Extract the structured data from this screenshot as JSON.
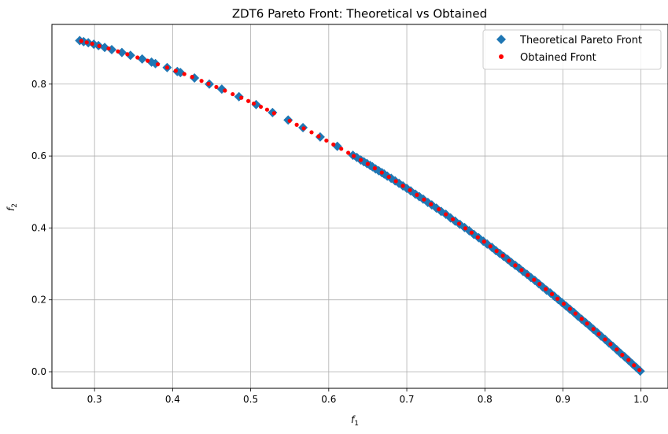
{
  "chart_data": {
    "type": "scatter",
    "title": "ZDT6 Pareto Front: Theoretical vs Obtained",
    "xlabel_main": "f",
    "xlabel_sub": "1",
    "ylabel_main": "f",
    "ylabel_sub": "2",
    "xlim": [
      0.2454,
      1.0346
    ],
    "ylim": [
      -0.046,
      0.966
    ],
    "xticks": [
      0.3,
      0.4,
      0.5,
      0.6,
      0.7,
      0.8,
      0.9,
      1.0
    ],
    "xtick_labels": [
      "0.3",
      "0.4",
      "0.5",
      "0.6",
      "0.7",
      "0.8",
      "0.9",
      "1.0"
    ],
    "yticks": [
      0.0,
      0.2,
      0.4,
      0.6,
      0.8
    ],
    "ytick_labels": [
      "0.0",
      "0.2",
      "0.4",
      "0.6",
      "0.8"
    ],
    "grid": true,
    "legend_position": "top-right",
    "series": [
      {
        "name": "Theoretical Pareto Front",
        "marker": "diamond",
        "color": "#1f77b4",
        "x": [
          0.281,
          0.286,
          0.292,
          0.299,
          0.305,
          0.313,
          0.322,
          0.335,
          0.346,
          0.361,
          0.373,
          0.378,
          0.393,
          0.406,
          0.41,
          0.428,
          0.447,
          0.463,
          0.485,
          0.507,
          0.528,
          0.548,
          0.567,
          0.589,
          0.611,
          0.631,
          0.636,
          0.641,
          0.645,
          0.649,
          0.653,
          0.656,
          0.66,
          0.664,
          0.668,
          0.671,
          0.675,
          0.68,
          0.685,
          0.69,
          0.695,
          0.7,
          0.705,
          0.711,
          0.716,
          0.721,
          0.727,
          0.732,
          0.738,
          0.744,
          0.75,
          0.756,
          0.762,
          0.768,
          0.774,
          0.78,
          0.786,
          0.792,
          0.798,
          0.803,
          0.809,
          0.814,
          0.819,
          0.824,
          0.829,
          0.834,
          0.839,
          0.844,
          0.849,
          0.854,
          0.859,
          0.864,
          0.869,
          0.874,
          0.879,
          0.884,
          0.889,
          0.894,
          0.899,
          0.904,
          0.909,
          0.914,
          0.919,
          0.924,
          0.929,
          0.934,
          0.939,
          0.944,
          0.949,
          0.954,
          0.959,
          0.964,
          0.969,
          0.974,
          0.979,
          0.984,
          0.989,
          0.994,
          0.999
        ],
        "y": [
          0.921,
          0.918,
          0.915,
          0.911,
          0.907,
          0.902,
          0.896,
          0.888,
          0.88,
          0.87,
          0.861,
          0.857,
          0.846,
          0.835,
          0.832,
          0.817,
          0.8,
          0.786,
          0.765,
          0.743,
          0.721,
          0.7,
          0.679,
          0.653,
          0.627,
          0.602,
          0.596,
          0.589,
          0.584,
          0.579,
          0.574,
          0.57,
          0.564,
          0.559,
          0.554,
          0.55,
          0.544,
          0.538,
          0.531,
          0.524,
          0.517,
          0.51,
          0.503,
          0.494,
          0.487,
          0.48,
          0.471,
          0.464,
          0.455,
          0.446,
          0.438,
          0.428,
          0.419,
          0.41,
          0.401,
          0.392,
          0.382,
          0.373,
          0.363,
          0.355,
          0.346,
          0.337,
          0.329,
          0.321,
          0.313,
          0.304,
          0.296,
          0.288,
          0.279,
          0.271,
          0.262,
          0.254,
          0.245,
          0.236,
          0.227,
          0.219,
          0.21,
          0.201,
          0.192,
          0.183,
          0.174,
          0.165,
          0.155,
          0.146,
          0.137,
          0.128,
          0.118,
          0.109,
          0.099,
          0.09,
          0.08,
          0.071,
          0.061,
          0.051,
          0.042,
          0.032,
          0.022,
          0.012,
          0.002
        ]
      },
      {
        "name": "Obtained Front",
        "marker": "circle",
        "color": "#ff0000",
        "x": [
          0.283,
          0.29,
          0.297,
          0.306,
          0.318,
          0.33,
          0.342,
          0.355,
          0.368,
          0.381,
          0.393,
          0.404,
          0.415,
          0.425,
          0.437,
          0.446,
          0.456,
          0.467,
          0.477,
          0.488,
          0.497,
          0.504,
          0.513,
          0.521,
          0.53,
          0.55,
          0.559,
          0.568,
          0.578,
          0.587,
          0.597,
          0.606,
          0.616,
          0.625,
          0.632,
          0.641,
          0.65,
          0.659,
          0.668,
          0.677,
          0.686,
          0.695,
          0.704,
          0.713,
          0.722,
          0.731,
          0.741,
          0.75,
          0.759,
          0.767,
          0.775,
          0.783,
          0.791,
          0.799,
          0.807,
          0.815,
          0.823,
          0.831,
          0.839,
          0.847,
          0.855,
          0.863,
          0.87,
          0.878,
          0.886,
          0.893,
          0.901,
          0.909,
          0.916,
          0.924,
          0.931,
          0.939,
          0.946,
          0.954,
          0.961,
          0.969,
          0.976,
          0.984,
          0.991,
          0.998
        ],
        "y": [
          0.92,
          0.916,
          0.912,
          0.906,
          0.899,
          0.891,
          0.883,
          0.874,
          0.865,
          0.855,
          0.846,
          0.837,
          0.828,
          0.82,
          0.809,
          0.801,
          0.792,
          0.782,
          0.772,
          0.762,
          0.753,
          0.746,
          0.737,
          0.729,
          0.719,
          0.698,
          0.687,
          0.677,
          0.666,
          0.655,
          0.643,
          0.632,
          0.62,
          0.609,
          0.6,
          0.589,
          0.578,
          0.566,
          0.554,
          0.542,
          0.53,
          0.517,
          0.505,
          0.492,
          0.479,
          0.466,
          0.452,
          0.438,
          0.424,
          0.412,
          0.399,
          0.387,
          0.374,
          0.362,
          0.349,
          0.336,
          0.323,
          0.309,
          0.296,
          0.283,
          0.269,
          0.256,
          0.244,
          0.23,
          0.216,
          0.203,
          0.189,
          0.175,
          0.162,
          0.147,
          0.134,
          0.119,
          0.105,
          0.09,
          0.077,
          0.062,
          0.047,
          0.033,
          0.018,
          0.005
        ]
      }
    ]
  }
}
